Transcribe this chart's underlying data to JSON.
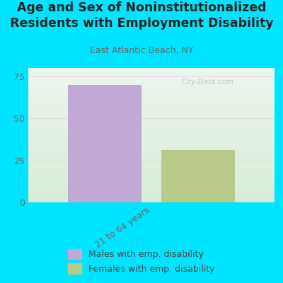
{
  "title": "Age and Sex of Noninstitutionalized\nResidents with Employment Disability",
  "subtitle": "East Atlantic Beach, NY",
  "watermark": "City-Data.com",
  "categories": [
    "21 to 64 years"
  ],
  "male_values": [
    70
  ],
  "female_values": [
    31
  ],
  "male_color": "#c2a8d4",
  "female_color": "#b8c98a",
  "background_color": "#00e5ff",
  "plot_bg_top": "#eef5ee",
  "plot_bg_bottom": "#d8edd8",
  "ylim": [
    0,
    80
  ],
  "yticks": [
    0,
    25,
    50,
    75
  ],
  "bar_width": 0.3,
  "bar_gap": 0.08,
  "title_fontsize": 12.5,
  "subtitle_fontsize": 9,
  "legend_fontsize": 9,
  "tick_color": "#666666",
  "grid_color": "#dddddd",
  "xlabel_rotation": 35,
  "xlabel_fontsize": 9
}
